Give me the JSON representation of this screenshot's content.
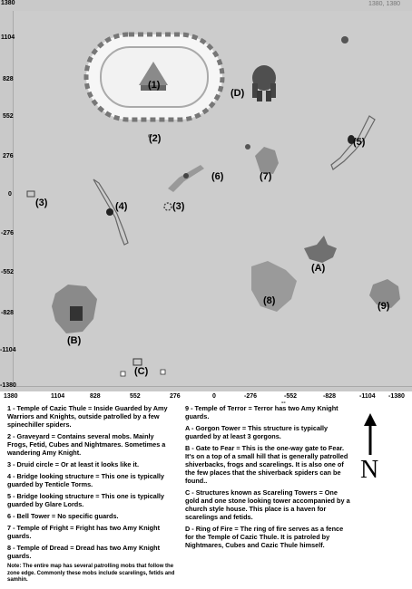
{
  "corner_coord": "1380",
  "corner_coord_right": "1380, 1380",
  "y_axis": [
    "1104",
    "828",
    "552",
    "276",
    "0",
    "-276",
    "-552",
    "-828",
    "-1104",
    "-1380"
  ],
  "x_axis": [
    "1380",
    "1104",
    "828",
    "552",
    "276",
    "0",
    "-276",
    "-552",
    "-828",
    "-1104",
    "-1380"
  ],
  "x_axis_mid_dash": "--",
  "labels": {
    "l1": "(1)",
    "l2": "(2)",
    "l3a": "(3)",
    "l3b": "(3)",
    "l4": "(4)",
    "l5": "(5)",
    "l6": "(6)",
    "l7": "(7)",
    "l8": "(8)",
    "l9": "(9)",
    "lA": "(A)",
    "lB": "(B)",
    "lC": "(C)",
    "lD": "(D)"
  },
  "legend_left": [
    "1 - Temple of Cazic Thule = Inside Guarded by Amy Warriors and Knights, outside patrolled by a few spinechiller spiders.",
    "2 - Graveyard = Contains several mobs. Mainly Frogs, Fetid, Cubes and Nightmares. Sometimes a wandering Amy Knight.",
    "3 - Druid circle = Or at least it looks like it.",
    "4 - Bridge looking structure = This one is typically guarded by Tenticle Torms.",
    "5 - Bridge looking structure = This one is typically guarded by Glare Lords.",
    "6 - Bell Tower = No specific guards.",
    "7 - Temple of Fright = Fright has two Amy Knight guards.",
    "8 - Temple of Dread = Dread has two Amy Knight guards."
  ],
  "note": "Note: The entire map has several patrolling mobs that follow the zone edge. Commonly these mobs include scarelings, fetids and samhin.",
  "legend_right": [
    "9 - Temple of Terror = Terror has two Amy Knight guards.",
    "A - Gorgon Tower = This structure is typically guarded by at least 3 gorgons.",
    "B - Gate to Fear = This is the one-way gate to Fear. It's on a top of a small hill that is generally patrolled shiverbacks, frogs and scarelings. It is also one of the few places that the shiverback spiders can be found..",
    "C - Structures known as Scareling Towers = One gold and one stone looking tower accompanied by a church style house. This place is a haven for scarelings and fetids.",
    "D - Ring of Fire = The ring of fire serves as a fence for the Temple of Cazic Thule. It is patroled by Nightmares, Cubes and Cazic Thule himself."
  ],
  "north_letter": "N"
}
